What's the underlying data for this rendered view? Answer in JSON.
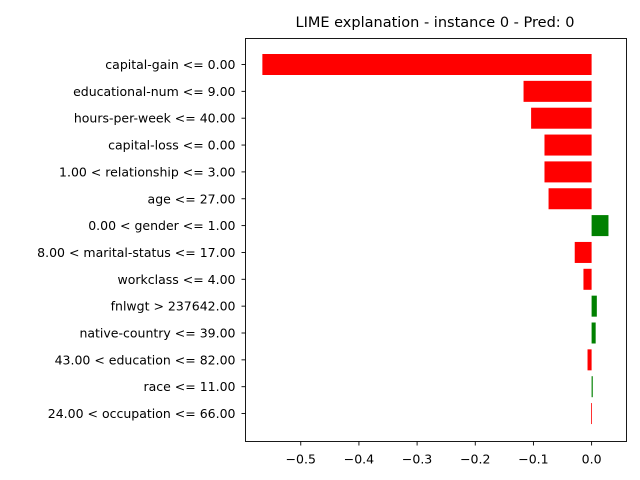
{
  "chart_data": {
    "type": "bar",
    "orientation": "horizontal",
    "title": "LIME explanation - instance 0 - Pred: 0",
    "xlabel": "",
    "ylabel": "",
    "xlim": [
      -0.595,
      0.06
    ],
    "xticks": [
      -0.5,
      -0.4,
      -0.3,
      -0.2,
      -0.1,
      0.0
    ],
    "xtick_labels": [
      "−0.5",
      "−0.4",
      "−0.3",
      "−0.2",
      "−0.1",
      "0.0"
    ],
    "grid": false,
    "colors": {
      "positive": "#008000",
      "negative": "#ff0000"
    },
    "categories": [
      "capital-gain <= 0.00",
      "educational-num <= 9.00",
      "hours-per-week <= 40.00",
      "capital-loss <= 0.00",
      "1.00 < relationship <= 3.00",
      "age <= 27.00",
      "0.00 < gender <= 1.00",
      "8.00 < marital-status <= 17.00",
      "workclass <= 4.00",
      "fnlwgt > 237642.00",
      "native-country <= 39.00",
      "43.00 < education <= 82.00",
      "race <= 11.00",
      "24.00 < occupation <= 66.00"
    ],
    "values": [
      -0.566,
      -0.117,
      -0.104,
      -0.081,
      -0.081,
      -0.074,
      0.029,
      -0.029,
      -0.014,
      0.009,
      0.007,
      -0.007,
      0.002,
      -0.001
    ]
  }
}
